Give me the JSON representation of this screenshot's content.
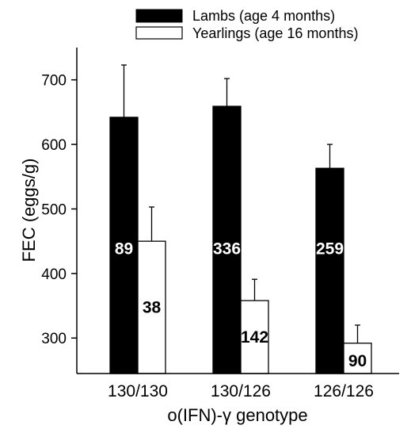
{
  "chart_data": {
    "type": "bar",
    "xlabel": "o(IFN)-γ genotype",
    "ylabel": "FEC (eggs/g)",
    "ylim": [
      245,
      750
    ],
    "yticks": [
      300,
      400,
      500,
      600,
      700
    ],
    "categories": [
      "130/130",
      "130/126",
      "126/126"
    ],
    "legend_position": "top",
    "series": [
      {
        "name": "Lambs (age 4 months)",
        "color": "#000000",
        "values": [
          642,
          659,
          563
        ],
        "error_upper": [
          723,
          702,
          600
        ],
        "n_labels": [
          "89",
          "336",
          "259"
        ],
        "n_label_color": "#ffffff"
      },
      {
        "name": "Yearlings (age 16 months)",
        "color": "#ffffff",
        "values": [
          450,
          358,
          292
        ],
        "error_upper": [
          503,
          391,
          320
        ],
        "n_labels": [
          "38",
          "142",
          "90"
        ],
        "n_label_color": "#000000"
      }
    ]
  }
}
